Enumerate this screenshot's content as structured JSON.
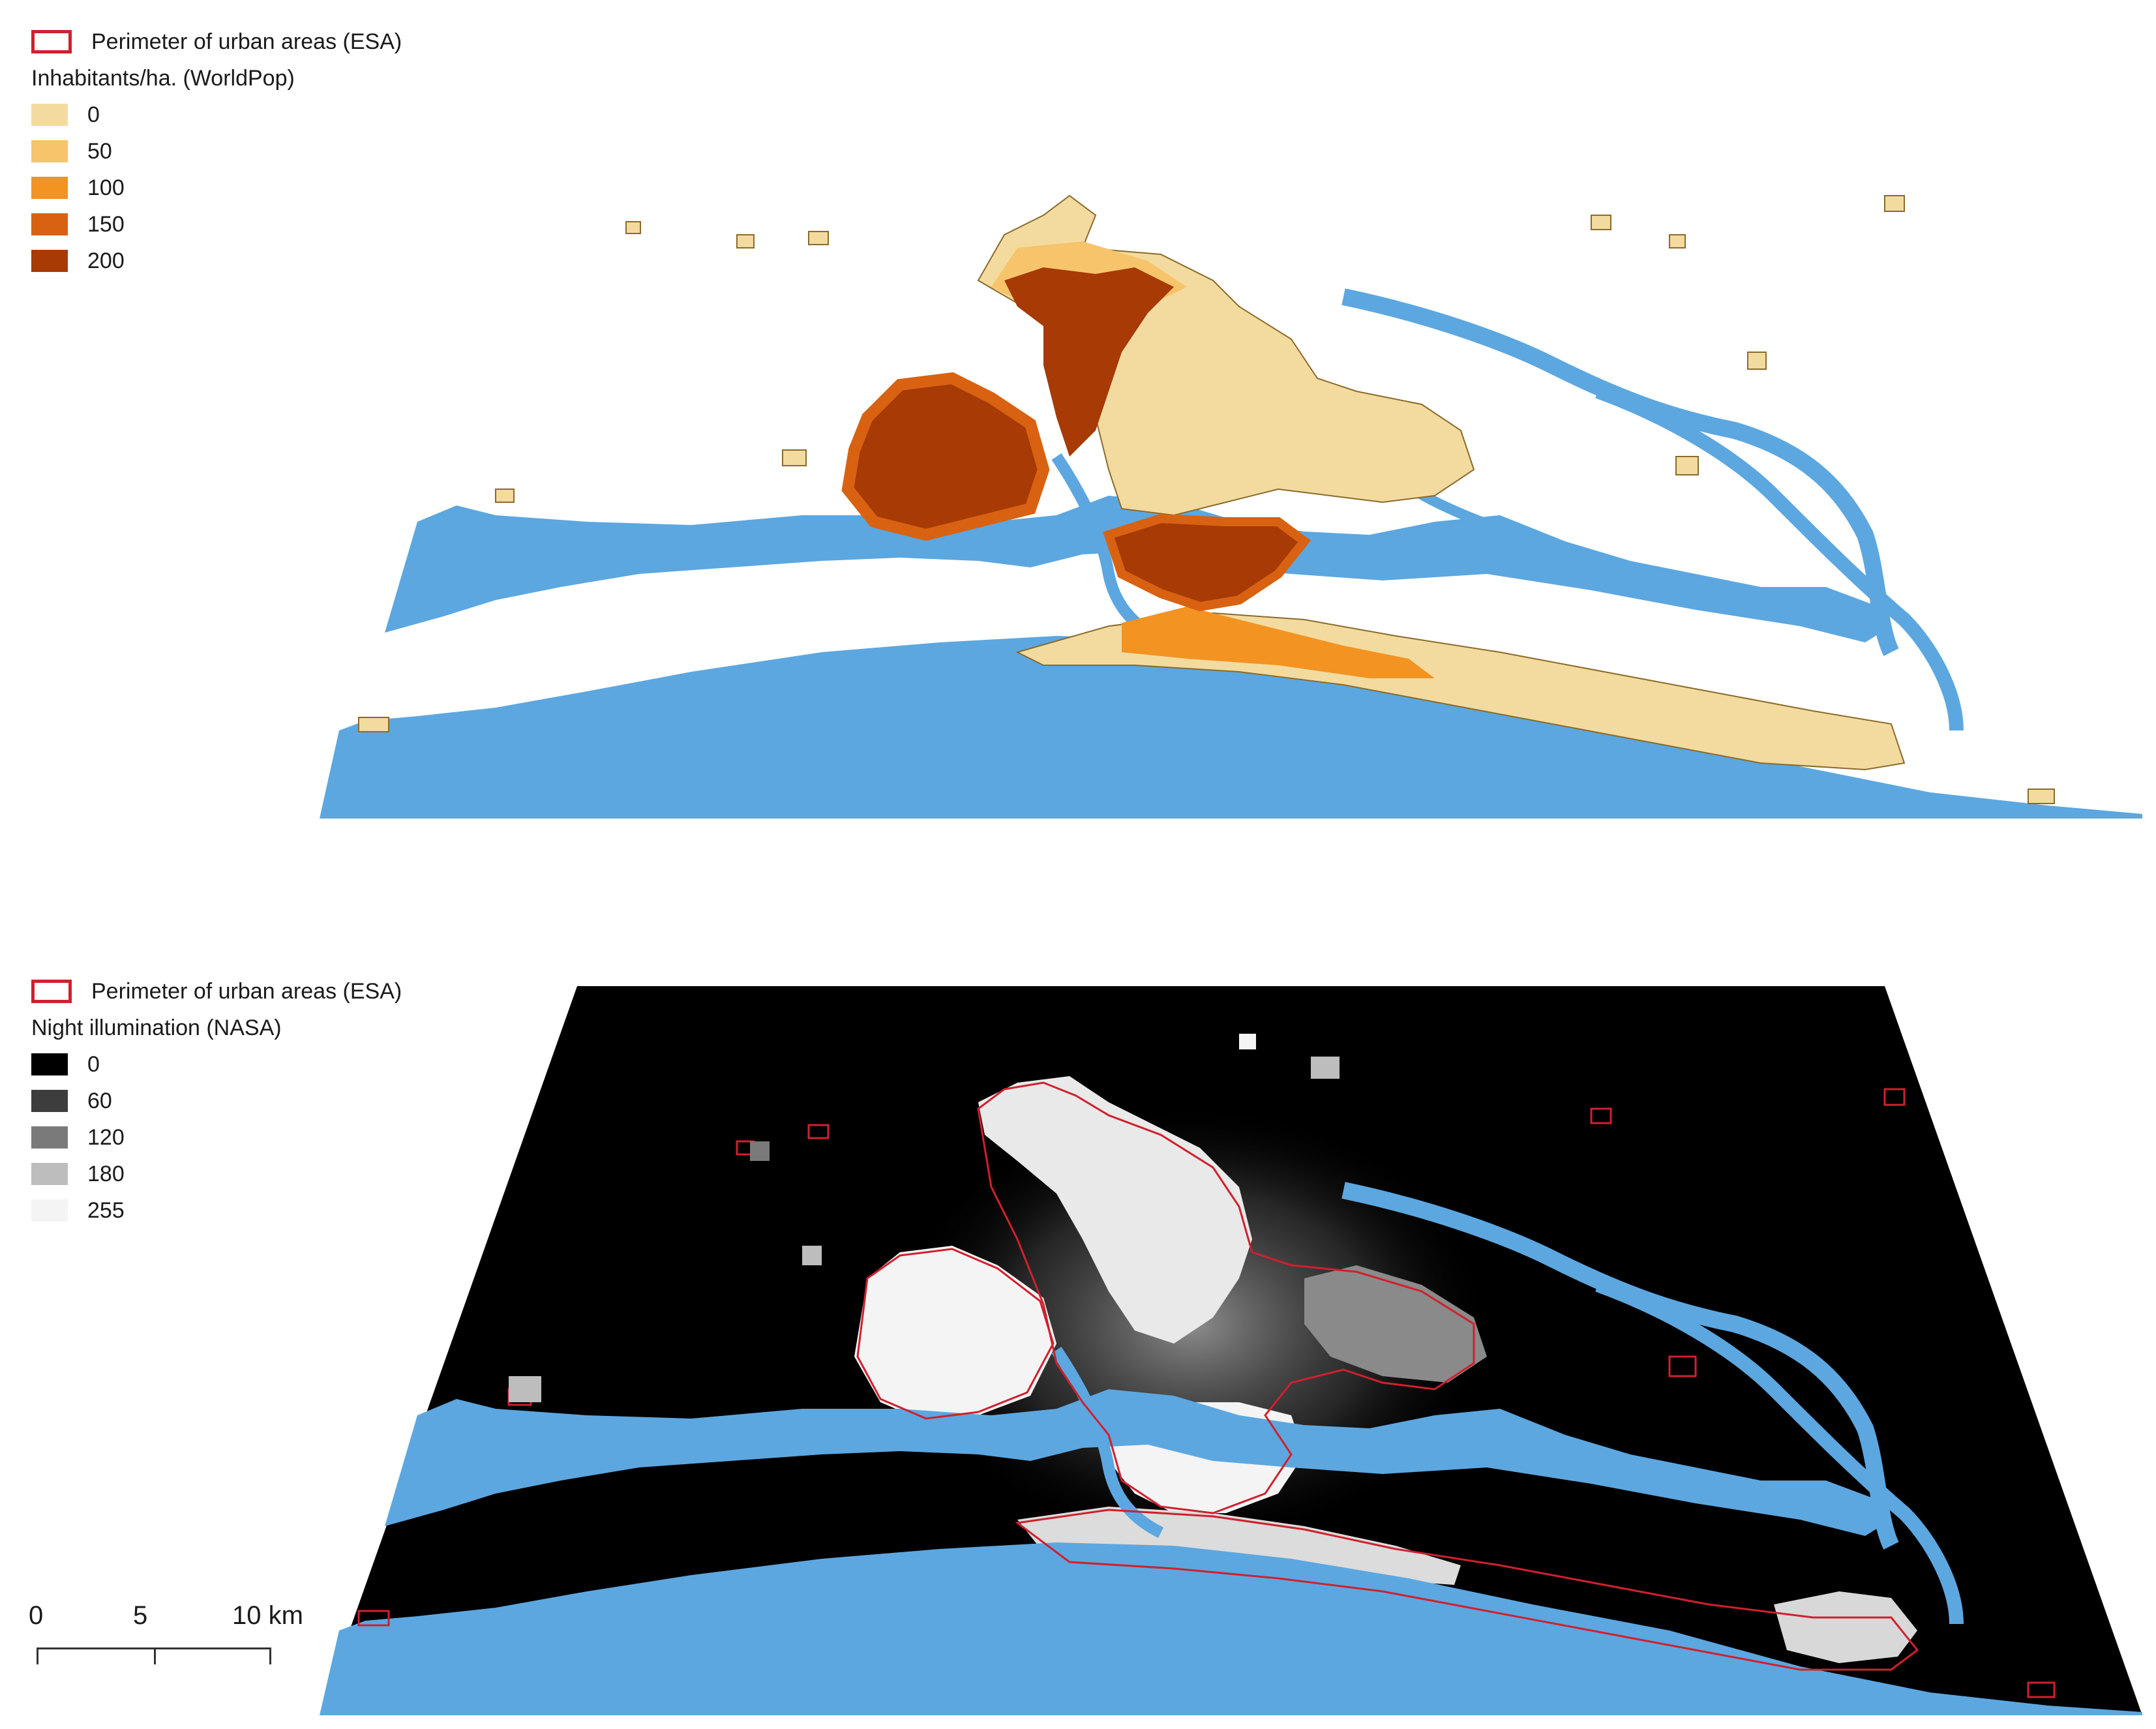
{
  "colors": {
    "water": "#5ca7e0",
    "urban_outline": "#d0202e",
    "night_background": "#000000"
  },
  "top_legend": {
    "urban_label": "Perimeter of urban areas (ESA)",
    "title": "Inhabitants/ha. (WorldPop)",
    "classes": [
      {
        "label": "0",
        "color": "#f3dba0"
      },
      {
        "label": "50",
        "color": "#f7c46c"
      },
      {
        "label": "100",
        "color": "#f39322"
      },
      {
        "label": "150",
        "color": "#d86211"
      },
      {
        "label": "200",
        "color": "#a73a05"
      }
    ]
  },
  "bottom_legend": {
    "urban_label": "Perimeter of urban areas (ESA)",
    "title": "Night illumination (NASA)",
    "classes": [
      {
        "label": "0",
        "color": "#000000"
      },
      {
        "label": "60",
        "color": "#3d3d3d"
      },
      {
        "label": "120",
        "color": "#7a7a7a"
      },
      {
        "label": "180",
        "color": "#bdbdbd"
      },
      {
        "label": "255",
        "color": "#f4f4f4"
      }
    ]
  },
  "scale_bar": {
    "ticks": [
      "0",
      "5",
      "10 km"
    ]
  }
}
